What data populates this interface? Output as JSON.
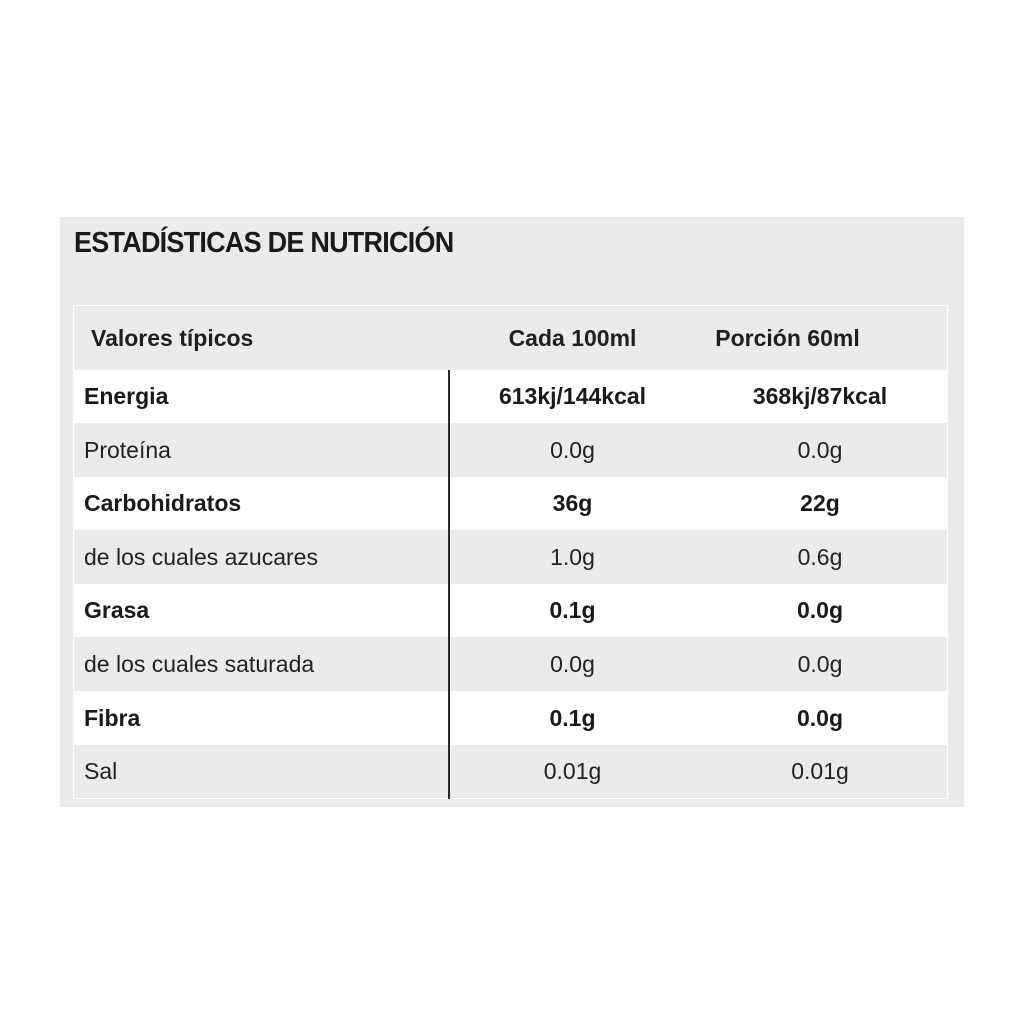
{
  "title": "ESTADÍSTICAS DE NUTRICIÓN",
  "header": {
    "col1": "Valores típicos",
    "col2": "Cada 100ml",
    "col3": "Porción 60ml"
  },
  "rows": [
    {
      "label": "Energia",
      "per100": "613kj/144kcal",
      "portion": "368kj/87kcal",
      "bold": true
    },
    {
      "label": "Proteína",
      "per100": "0.0g",
      "portion": "0.0g",
      "bold": false
    },
    {
      "label": "Carbohidratos",
      "per100": "36g",
      "portion": "22g",
      "bold": true
    },
    {
      "label": "de los cuales azucares",
      "per100": "1.0g",
      "portion": "0.6g",
      "bold": false
    },
    {
      "label": "Grasa",
      "per100": "0.1g",
      "portion": "0.0g",
      "bold": true
    },
    {
      "label": "de los cuales saturada",
      "per100": "0.0g",
      "portion": "0.0g",
      "bold": false
    },
    {
      "label": "Fibra",
      "per100": "0.1g",
      "portion": "0.0g",
      "bold": true
    },
    {
      "label": "Sal",
      "per100": "0.01g",
      "portion": "0.01g",
      "bold": false
    }
  ],
  "colors": {
    "panel_background": "#ebebeb",
    "row_white": "#ffffff",
    "row_grey": "#ebebeb",
    "text": "#1a1a1a"
  }
}
